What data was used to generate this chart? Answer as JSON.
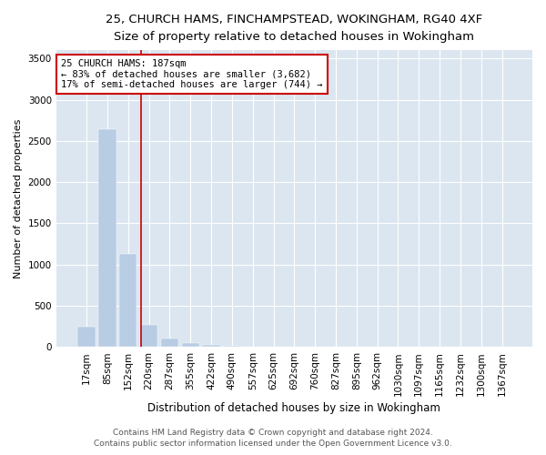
{
  "title1": "25, CHURCH HAMS, FINCHAMPSTEAD, WOKINGHAM, RG40 4XF",
  "title2": "Size of property relative to detached houses in Wokingham",
  "xlabel": "Distribution of detached houses by size in Wokingham",
  "ylabel": "Number of detached properties",
  "footer1": "Contains HM Land Registry data © Crown copyright and database right 2024.",
  "footer2": "Contains public sector information licensed under the Open Government Licence v3.0.",
  "annotation_line1": "25 CHURCH HAMS: 187sqm",
  "annotation_line2": "← 83% of detached houses are smaller (3,682)",
  "annotation_line3": "17% of semi-detached houses are larger (744) →",
  "bar_color": "#b8cce4",
  "vline_color": "#cc0000",
  "vline_x": 2.62,
  "annotation_box_color": "#cc0000",
  "background_color": "#dce6f0",
  "categories": [
    "17sqm",
    "85sqm",
    "152sqm",
    "220sqm",
    "287sqm",
    "355sqm",
    "422sqm",
    "490sqm",
    "557sqm",
    "625sqm",
    "692sqm",
    "760sqm",
    "827sqm",
    "895sqm",
    "962sqm",
    "1030sqm",
    "1097sqm",
    "1165sqm",
    "1232sqm",
    "1300sqm",
    "1367sqm"
  ],
  "values": [
    245,
    2640,
    1130,
    265,
    100,
    48,
    28,
    18,
    5,
    3,
    2,
    1,
    1,
    0,
    0,
    0,
    0,
    0,
    0,
    0,
    0
  ],
  "ylim": [
    0,
    3600
  ],
  "yticks": [
    0,
    500,
    1000,
    1500,
    2000,
    2500,
    3000,
    3500
  ],
  "title1_fontsize": 9.5,
  "title2_fontsize": 8.5,
  "tick_fontsize": 7.5,
  "ylabel_fontsize": 8,
  "xlabel_fontsize": 8.5,
  "footer_fontsize": 6.5,
  "annotation_fontsize": 7.5
}
